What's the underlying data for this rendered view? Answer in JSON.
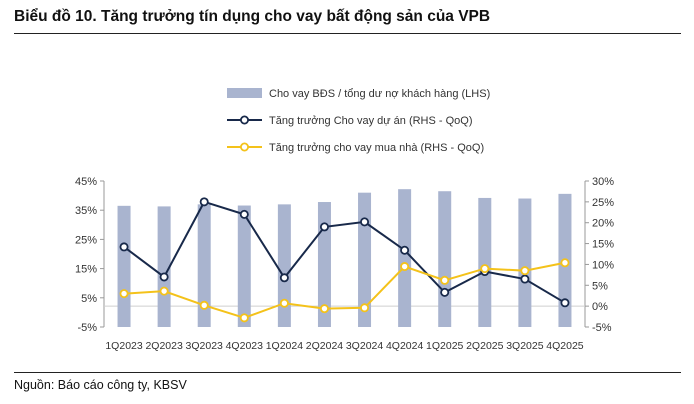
{
  "title": "Biểu đồ 10. Tăng trưởng tín dụng cho vay bất động sản của VPB",
  "source": "Nguồn: Báo cáo công ty, KBSV",
  "colors": {
    "bar": "#a9b4cf",
    "line_project": "#18294a",
    "line_home": "#f4c21a",
    "axis": "#999999"
  },
  "chart_data": {
    "type": "bar",
    "categories": [
      "1Q2023",
      "2Q2023",
      "3Q2023",
      "4Q2023",
      "1Q2024",
      "2Q2024",
      "3Q2024",
      "4Q2024",
      "1Q2025",
      "2Q2025",
      "3Q2025",
      "4Q2025"
    ],
    "left_axis": {
      "ylim": [
        -5,
        45
      ],
      "ticks": [
        "-5%",
        "5%",
        "15%",
        "25%",
        "35%",
        "45%"
      ],
      "tick_values": [
        -5,
        5,
        15,
        25,
        35,
        45
      ]
    },
    "right_axis": {
      "ylim": [
        -5,
        30
      ],
      "ticks": [
        "-5%",
        "0%",
        "5%",
        "10%",
        "15%",
        "20%",
        "25%",
        "30%"
      ],
      "tick_values": [
        -5,
        0,
        5,
        10,
        15,
        20,
        25,
        30
      ]
    },
    "series": [
      {
        "name": "Cho vay BĐS / tổng dư nợ khách hàng (LHS)",
        "type": "bar",
        "axis": "left",
        "values": [
          36.5,
          36.3,
          37.0,
          36.6,
          37.0,
          37.8,
          41.0,
          42.2,
          41.5,
          39.2,
          39.0,
          40.6
        ]
      },
      {
        "name": "Tăng trưởng Cho vay dự án (RHS - QoQ)",
        "type": "line",
        "axis": "right",
        "values": [
          14.2,
          7.0,
          25.0,
          22.0,
          6.8,
          19.0,
          20.2,
          13.4,
          3.3,
          8.3,
          6.5,
          0.8
        ]
      },
      {
        "name": "Tăng trưởng cho vay mua nhà (RHS - QoQ)",
        "type": "line",
        "axis": "right",
        "values": [
          3.0,
          3.6,
          0.2,
          -2.8,
          0.7,
          -0.6,
          -0.4,
          9.5,
          6.2,
          9.0,
          8.5,
          10.4
        ]
      }
    ],
    "legend_position": "top-center",
    "grid": false
  }
}
